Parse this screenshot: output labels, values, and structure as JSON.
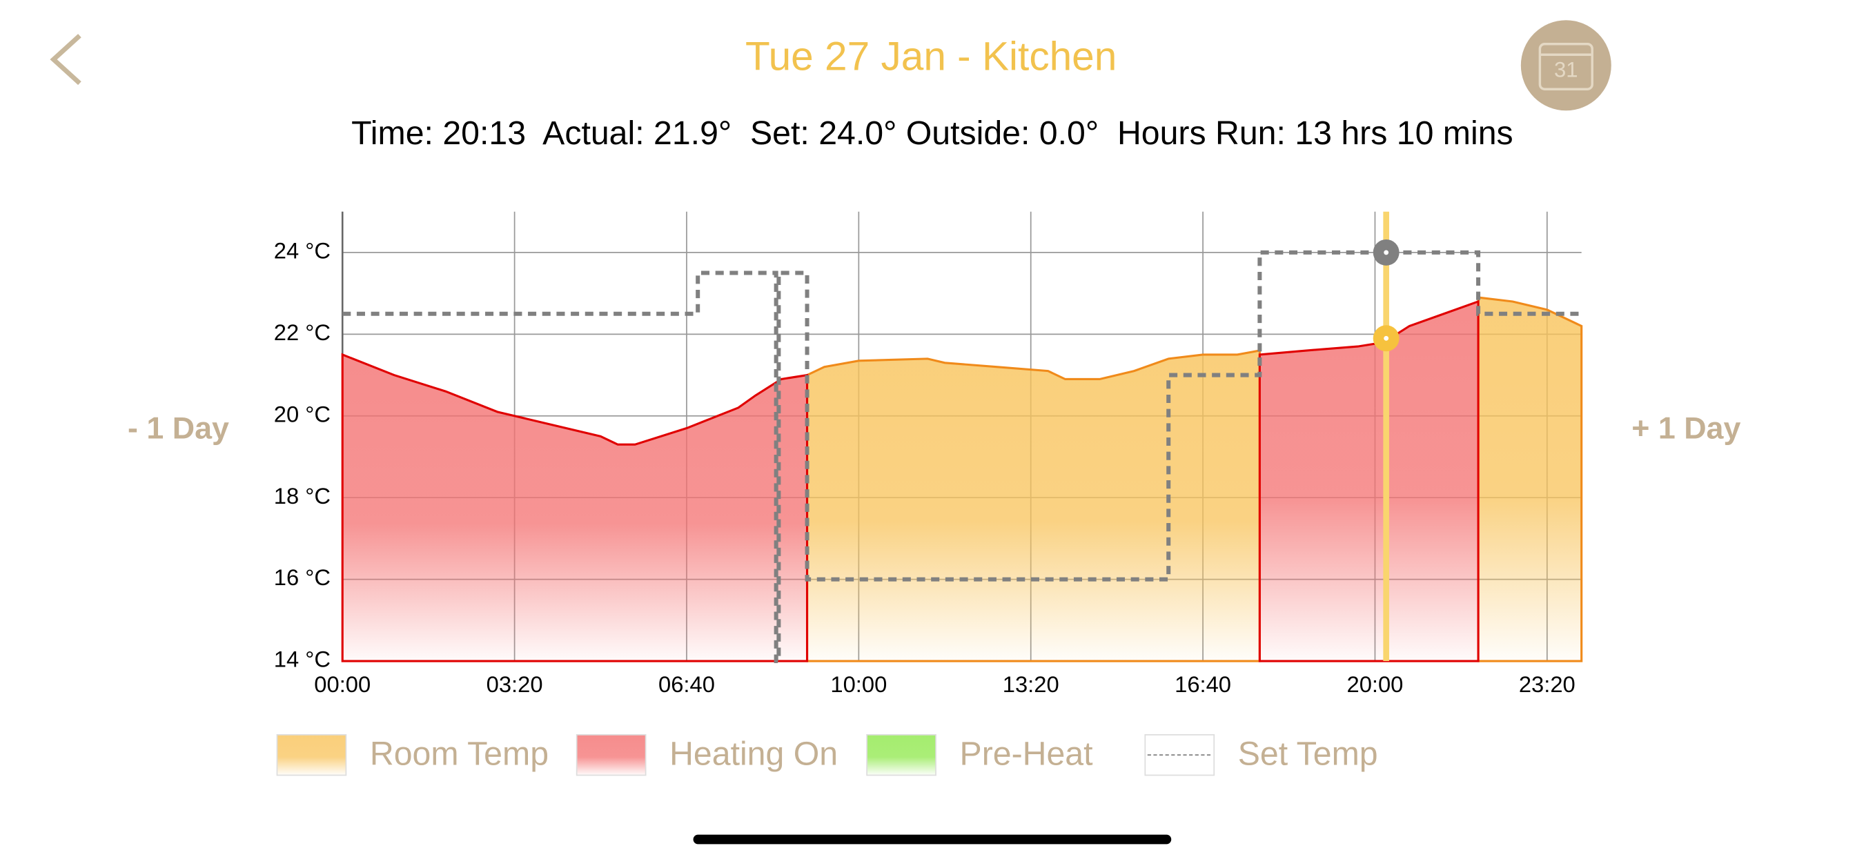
{
  "header": {
    "title": "Tue 27 Jan - Kitchen",
    "status": "Time: 20:13  Actual: 21.9°  Set: 24.0° Outside: 0.0°  Hours Run: 13 hrs 10 mins",
    "calendar": "31"
  },
  "nav": {
    "prev": "- 1 Day",
    "next": "+ 1 Day"
  },
  "chart_data": {
    "type": "area",
    "xlim": [
      0,
      1440
    ],
    "ylim": [
      14,
      25
    ],
    "xticks": [
      {
        "value": 0,
        "label": "00:00"
      },
      {
        "value": 200,
        "label": "03:20"
      },
      {
        "value": 400,
        "label": "06:40"
      },
      {
        "value": 600,
        "label": "10:00"
      },
      {
        "value": 800,
        "label": "13:20"
      },
      {
        "value": 1000,
        "label": "16:40"
      },
      {
        "value": 1200,
        "label": "20:00"
      },
      {
        "value": 1400,
        "label": "23:20"
      }
    ],
    "yticks": [
      {
        "value": 14,
        "label": "14 °C"
      },
      {
        "value": 16,
        "label": "16 °C"
      },
      {
        "value": 18,
        "label": "18 °C"
      },
      {
        "value": 20,
        "label": "20 °C"
      },
      {
        "value": 22,
        "label": "22 °C"
      },
      {
        "value": 24,
        "label": "24 °C"
      }
    ],
    "grid": true,
    "series": [
      {
        "name": "Room Temp",
        "color": "#f8c35a",
        "line_color": "#f08a1a",
        "x": [
          540,
          560,
          600,
          680,
          700,
          760,
          820,
          840,
          880,
          920,
          960,
          1000,
          1040,
          1066,
          null,
          1320,
          1360,
          1400,
          1440
        ],
        "values": [
          21.0,
          21.2,
          21.35,
          21.4,
          21.3,
          21.2,
          21.1,
          20.9,
          20.9,
          21.1,
          21.4,
          21.5,
          21.5,
          21.6,
          null,
          22.9,
          22.8,
          22.6,
          22.2
        ]
      },
      {
        "name": "Heating On",
        "color": "#f47070",
        "line_color": "#e00000",
        "x": [
          0,
          60,
          120,
          180,
          240,
          300,
          320,
          340,
          400,
          460,
          480,
          510,
          540,
          null,
          1066,
          1120,
          1180,
          1210,
          1240,
          1280,
          1320
        ],
        "values": [
          21.5,
          21.0,
          20.6,
          20.1,
          19.8,
          19.5,
          19.3,
          19.3,
          19.7,
          20.2,
          20.5,
          20.9,
          21.0,
          null,
          21.5,
          21.6,
          21.7,
          21.8,
          22.2,
          22.5,
          22.8
        ]
      },
      {
        "name": "Pre-Heat",
        "color": "#8ee84a",
        "line_color": "#4cb020",
        "x": [],
        "values": []
      },
      {
        "name": "Set Temp",
        "color": "#808080",
        "dashed": true,
        "x": [
          0,
          413,
          504,
          507,
          540,
          960,
          1066,
          1320,
          1440
        ],
        "values": [
          22.5,
          23.5,
          14,
          23.5,
          16,
          21,
          24,
          22.5,
          22.5
        ]
      }
    ],
    "cursor": {
      "x": 1213,
      "actual": 21.9,
      "set": 24.0,
      "color": "#f9d56e"
    }
  }
}
